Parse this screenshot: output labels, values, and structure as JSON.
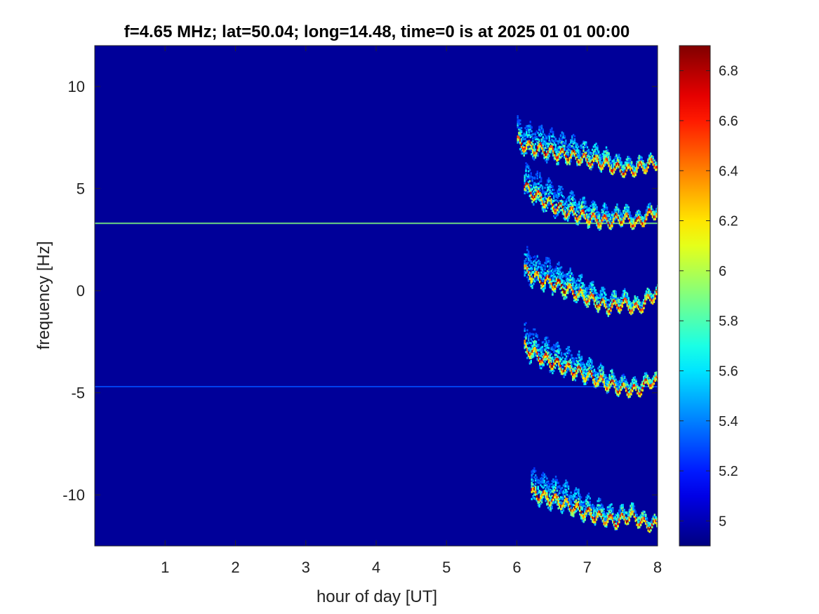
{
  "chart_data": {
    "type": "heatmap",
    "title": "f=4.65 MHz;  lat=50.04; long=14.48, time=0 is at 2025 01 01 00:00",
    "xlabel": "hour of day [UT]",
    "ylabel": "frequency [Hz]",
    "xlim": [
      0,
      8
    ],
    "ylim": [
      -12.5,
      12
    ],
    "xticks": [
      1,
      2,
      3,
      4,
      5,
      6,
      7,
      8
    ],
    "xtick_labels": [
      "1",
      "2",
      "3",
      "4",
      "5",
      "6",
      "7",
      "8"
    ],
    "yticks": [
      10,
      5,
      0,
      -5,
      -10
    ],
    "ytick_labels": [
      "10",
      "5",
      "0",
      "-5",
      "-10"
    ],
    "colorbar": {
      "clim": [
        4.9,
        6.9
      ],
      "ticks": [
        6.8,
        6.6,
        6.4,
        6.2,
        6.0,
        5.8,
        5.6,
        5.4,
        5.2,
        5.0
      ],
      "tick_labels": [
        "6.8",
        "6.6",
        "6.4",
        "6.2",
        "6",
        "5.8",
        "5.6",
        "5.4",
        "5.2",
        "5"
      ],
      "colormap": "jet"
    },
    "background_value": 4.95,
    "lines": [
      {
        "freq": 3.3,
        "x": [
          0,
          8
        ],
        "value": 5.9
      },
      {
        "freq": -4.7,
        "x": [
          0,
          8
        ],
        "value": 5.3
      }
    ],
    "traces": [
      {
        "x": [
          6.0,
          6.2,
          6.4,
          6.6,
          6.8,
          7.0,
          7.2,
          7.4,
          7.6,
          7.8,
          8.0
        ],
        "freq": [
          7.3,
          7.0,
          6.9,
          6.7,
          6.6,
          6.4,
          6.3,
          6.0,
          5.9,
          6.1,
          6.3
        ]
      },
      {
        "x": [
          6.1,
          6.3,
          6.5,
          6.7,
          6.9,
          7.1,
          7.3,
          7.5,
          7.7,
          7.9,
          8.0
        ],
        "freq": [
          5.1,
          4.6,
          4.2,
          3.9,
          3.7,
          3.5,
          3.4,
          3.6,
          3.3,
          3.8,
          3.9
        ]
      },
      {
        "x": [
          6.1,
          6.3,
          6.5,
          6.7,
          6.9,
          7.1,
          7.3,
          7.5,
          7.7,
          7.9,
          8.0
        ],
        "freq": [
          1.0,
          0.6,
          0.4,
          0.1,
          -0.2,
          -0.5,
          -0.8,
          -0.6,
          -0.9,
          -0.3,
          -0.1
        ]
      },
      {
        "x": [
          6.1,
          6.3,
          6.5,
          6.7,
          6.9,
          7.1,
          7.3,
          7.5,
          7.7,
          7.9,
          8.0
        ],
        "freq": [
          -2.7,
          -3.2,
          -3.5,
          -3.8,
          -4.0,
          -4.3,
          -4.6,
          -4.8,
          -4.9,
          -4.4,
          -4.5
        ]
      },
      {
        "x": [
          6.2,
          6.4,
          6.6,
          6.8,
          7.0,
          7.2,
          7.4,
          7.6,
          7.8,
          8.0
        ],
        "freq": [
          -9.9,
          -10.1,
          -10.3,
          -10.6,
          -10.9,
          -11.1,
          -11.3,
          -11.0,
          -11.4,
          -11.5
        ]
      }
    ]
  }
}
